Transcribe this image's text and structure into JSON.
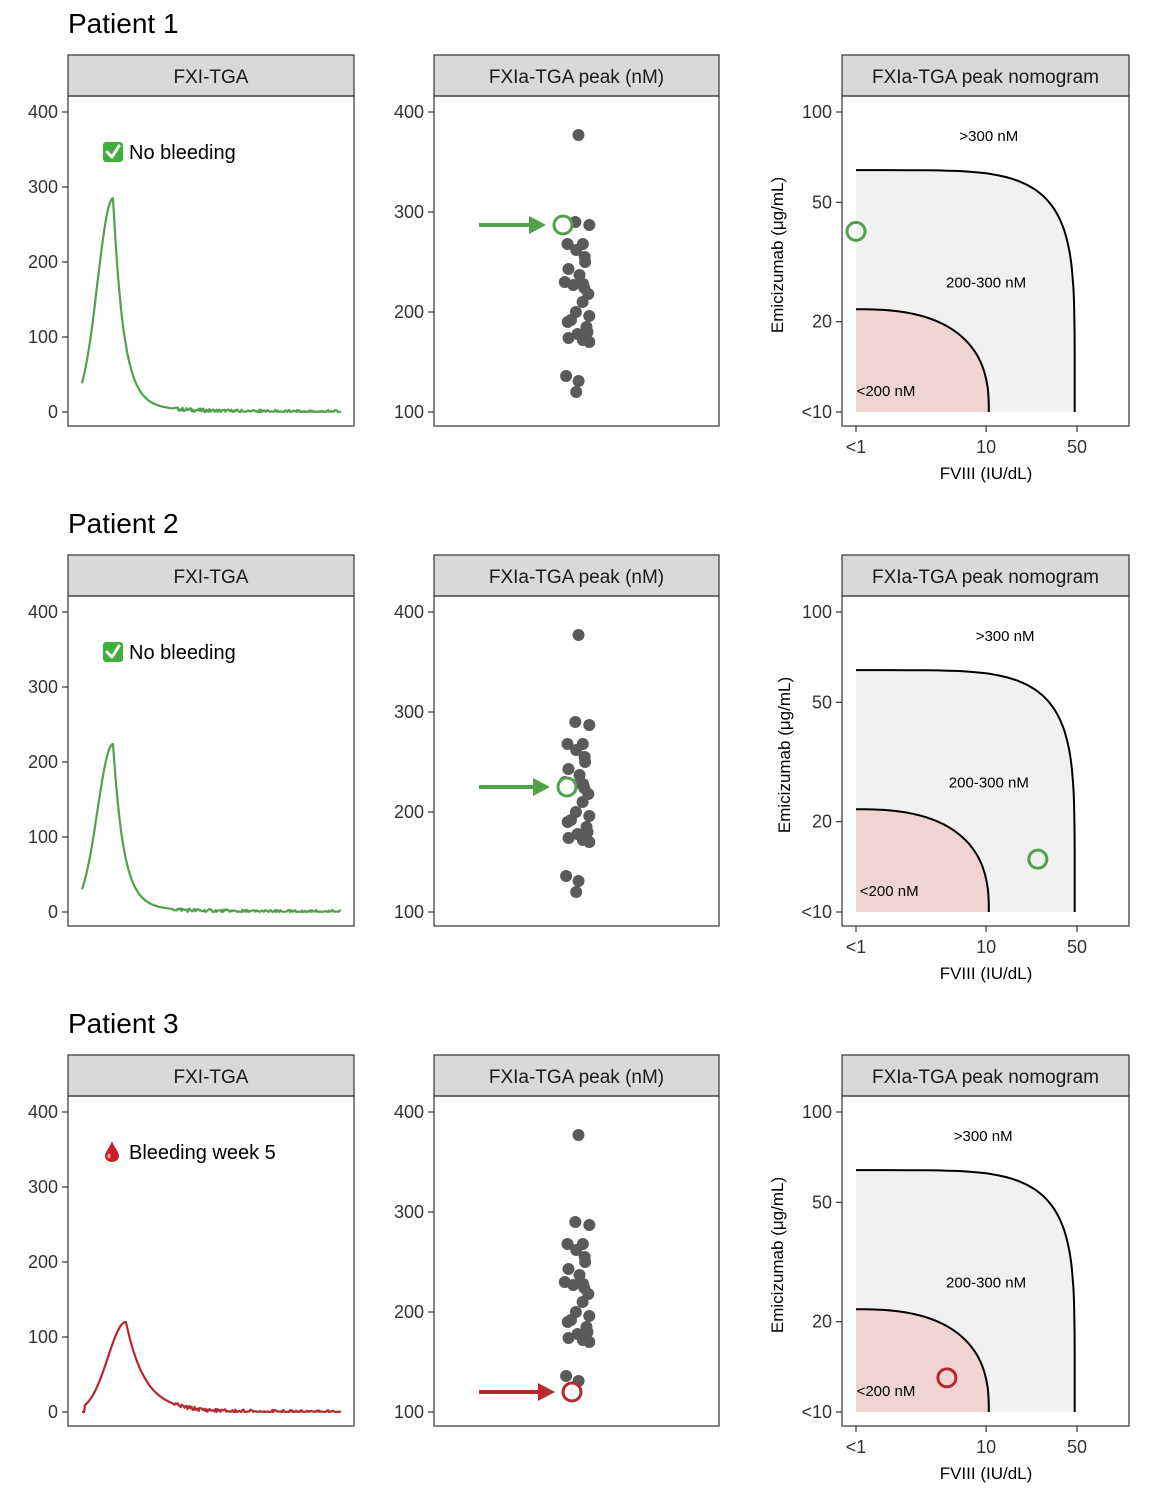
{
  "colors": {
    "good": "#4fa24a",
    "bad": "#b7282e",
    "dots": "#5a5a5a",
    "strip_fill": "#d9d9d9",
    "zone_low": "#f0d3d3",
    "zone_mid": "#f1f1f1"
  },
  "labels": {
    "panel_tga": "FXI-TGA",
    "panel_peak": "FXIa-TGA peak (nM)",
    "panel_nomo": "FXIa-TGA peak nomogram",
    "nomo_xlabel": "FVIII (IU/dL)",
    "nomo_ylabel": "Emicizumab (μg/mL)",
    "zone_high": ">300 nM",
    "zone_mid": "200-300 nM",
    "zone_low": "<200 nM"
  },
  "axes": {
    "tga_yticks": [
      "0",
      "100",
      "200",
      "300",
      "400"
    ],
    "peak_yticks": [
      "100",
      "200",
      "300",
      "400"
    ],
    "nomo_yticks": [
      "<10",
      "20",
      "50",
      "100"
    ],
    "nomo_xticks": [
      "<1",
      "10",
      "50"
    ]
  },
  "cohort_peaks_nM": [
    377,
    287,
    290,
    268,
    268,
    262,
    255,
    250,
    243,
    237,
    230,
    228,
    227,
    224,
    218,
    210,
    200,
    196,
    192,
    190,
    185,
    180,
    178,
    174,
    172,
    170,
    136,
    131,
    120
  ],
  "patients": [
    {
      "title": "Patient 1",
      "status_icon": "checkmark-icon",
      "status_text": "No bleeding",
      "tone": "good",
      "tga_peak_nM": 285,
      "tga_peak_time_frac": 0.12,
      "tga_rise_frac": 0.06,
      "tga_decay_frac": 0.04,
      "tga_tail_nM": 14,
      "peak_nM": 287,
      "nomo_point": {
        "fviii_iu_dl": 1,
        "emicizumab_ug_ml": 40
      },
      "nomo_label_pos": {
        "high": [
          10.5,
          80
        ],
        "mid": [
          10,
          26
        ],
        "low": [
          1.7,
          11.3
        ]
      }
    },
    {
      "title": "Patient 2",
      "status_icon": "checkmark-icon",
      "status_text": "No bleeding",
      "tone": "good",
      "tga_peak_nM": 224,
      "tga_peak_time_frac": 0.12,
      "tga_rise_frac": 0.06,
      "tga_decay_frac": 0.04,
      "tga_tail_nM": 12,
      "peak_nM": 225,
      "nomo_point": {
        "fviii_iu_dl": 25,
        "emicizumab_ug_ml": 15
      },
      "nomo_label_pos": {
        "high": [
          14,
          80
        ],
        "mid": [
          10.5,
          26
        ],
        "low": [
          1.8,
          11.3
        ]
      }
    },
    {
      "title": "Patient 3",
      "status_icon": "blood-drop-icon",
      "status_text": "Bleeding week 5",
      "tone": "bad",
      "tga_peak_nM": 120,
      "tga_peak_time_frac": 0.17,
      "tga_rise_frac": 0.07,
      "tga_decay_frac": 0.07,
      "tga_tail_nM": 8,
      "peak_nM": 120,
      "nomo_point": {
        "fviii_iu_dl": 5,
        "emicizumab_ug_ml": 13
      },
      "nomo_label_pos": {
        "high": [
          9.5,
          80
        ],
        "mid": [
          10,
          26
        ],
        "low": [
          1.7,
          11.3
        ]
      }
    }
  ],
  "chart_data": [
    {
      "type": "line",
      "title": "FXI-TGA (Patient 1, Patient 2, Patient 3)",
      "xlabel": "",
      "ylabel": "",
      "ylim": [
        0,
        430
      ],
      "yticks": [
        0,
        100,
        200,
        300,
        400
      ],
      "series": [
        {
          "name": "Patient 1",
          "peak": 285,
          "status": "No bleeding"
        },
        {
          "name": "Patient 2",
          "peak": 224,
          "status": "No bleeding"
        },
        {
          "name": "Patient 3",
          "peak": 120,
          "status": "Bleeding week 5"
        }
      ]
    },
    {
      "type": "scatter",
      "title": "FXIa-TGA peak (nM)",
      "ylim": [
        100,
        430
      ],
      "yticks": [
        100,
        200,
        300,
        400
      ],
      "highlighted": {
        "Patient 1": 287,
        "Patient 2": 225,
        "Patient 3": 120
      }
    },
    {
      "type": "area",
      "title": "FXIa-TGA peak nomogram",
      "xlabel": "FVIII (IU/dL)",
      "ylabel": "Emicizumab (μg/mL)",
      "xscale": "log",
      "yscale": "log",
      "xticks": [
        "<1",
        "10",
        "50"
      ],
      "yticks": [
        "<10",
        "20",
        "50",
        "100"
      ],
      "regions": [
        ">300 nM",
        "200-300 nM",
        "<200 nM"
      ],
      "points": [
        {
          "name": "Patient 1",
          "fviii": 1,
          "emicizumab": 40
        },
        {
          "name": "Patient 2",
          "fviii": 25,
          "emicizumab": 15
        },
        {
          "name": "Patient 3",
          "fviii": 5,
          "emicizumab": 13
        }
      ]
    }
  ]
}
